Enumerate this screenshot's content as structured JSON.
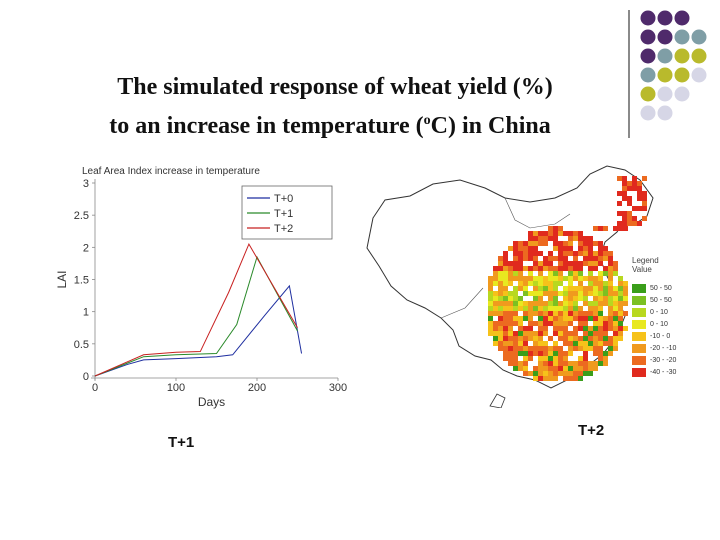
{
  "slide": {
    "title_line1": "The simulated response of wheat yield (%)",
    "title_line2_a": "to an increase in temperature (",
    "title_line2_sup": "o",
    "title_line2_b": "C) in China",
    "label_left": "T+1",
    "label_right": "T+2"
  },
  "decoration": {
    "dot_colors": [
      "#4f2a6b",
      "#7f9ea6",
      "#b9ba2c",
      "#d6d6e6"
    ]
  },
  "chart_data": {
    "type": "line",
    "title": "Leaf Area Index   increase in temperature",
    "xlabel": "Days",
    "ylabel": "LAI",
    "xlim": [
      0,
      300
    ],
    "ylim": [
      0,
      3
    ],
    "xticks": [
      0,
      100,
      200,
      300
    ],
    "yticks": [
      0,
      0.5,
      1,
      1.5,
      2,
      2.5,
      3
    ],
    "legend_position": "top-right",
    "series": [
      {
        "name": "T+0",
        "color": "#1f2fa0",
        "x": [
          0,
          40,
          60,
          100,
          150,
          170,
          210,
          240,
          255
        ],
        "y": [
          0,
          0.18,
          0.25,
          0.27,
          0.3,
          0.33,
          0.95,
          1.4,
          0.35
        ]
      },
      {
        "name": "T+1",
        "color": "#2a8a2a",
        "x": [
          0,
          40,
          60,
          100,
          150,
          175,
          200,
          250
        ],
        "y": [
          0,
          0.2,
          0.3,
          0.33,
          0.35,
          0.8,
          1.85,
          0.7
        ]
      },
      {
        "name": "T+2",
        "color": "#c82020",
        "x": [
          0,
          40,
          60,
          100,
          130,
          165,
          190,
          250
        ],
        "y": [
          0,
          0.22,
          0.33,
          0.37,
          0.38,
          1.3,
          2.05,
          0.75
        ]
      }
    ]
  },
  "map_legend": {
    "title": "Legend\nValue",
    "items": [
      {
        "label": "50 - 50",
        "color": "#3a9e1a"
      },
      {
        "label": "50 - 50",
        "color": "#7cc022"
      },
      {
        "label": "0 - 10",
        "color": "#b8d820"
      },
      {
        "label": "0 - 10",
        "color": "#e8e820"
      },
      {
        "label": "-10 - 0",
        "color": "#f6c21a"
      },
      {
        "label": "-20 - -10",
        "color": "#f09a1e"
      },
      {
        "label": "-30 - -20",
        "color": "#ec6a20"
      },
      {
        "label": "-40 - -30",
        "color": "#e02a1e"
      }
    ]
  }
}
